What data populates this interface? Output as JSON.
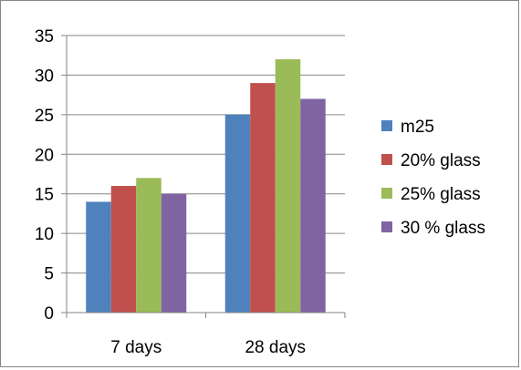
{
  "chart_data": {
    "type": "bar",
    "title": "",
    "xlabel": "",
    "ylabel": "",
    "categories": [
      "7 days",
      "28 days"
    ],
    "series": [
      {
        "name": "m25",
        "values": [
          14,
          25
        ],
        "color": "#4F81BD"
      },
      {
        "name": "20% glass",
        "values": [
          16,
          29
        ],
        "color": "#C0504D"
      },
      {
        "name": "25% glass",
        "values": [
          17,
          32
        ],
        "color": "#9BBB59"
      },
      {
        "name": "30 % glass",
        "values": [
          15,
          27
        ],
        "color": "#8064A2"
      }
    ],
    "ylim": [
      0,
      35
    ],
    "yticks": [
      0,
      5,
      10,
      15,
      20,
      25,
      30,
      35
    ],
    "grid": true,
    "legend_position": "right"
  }
}
